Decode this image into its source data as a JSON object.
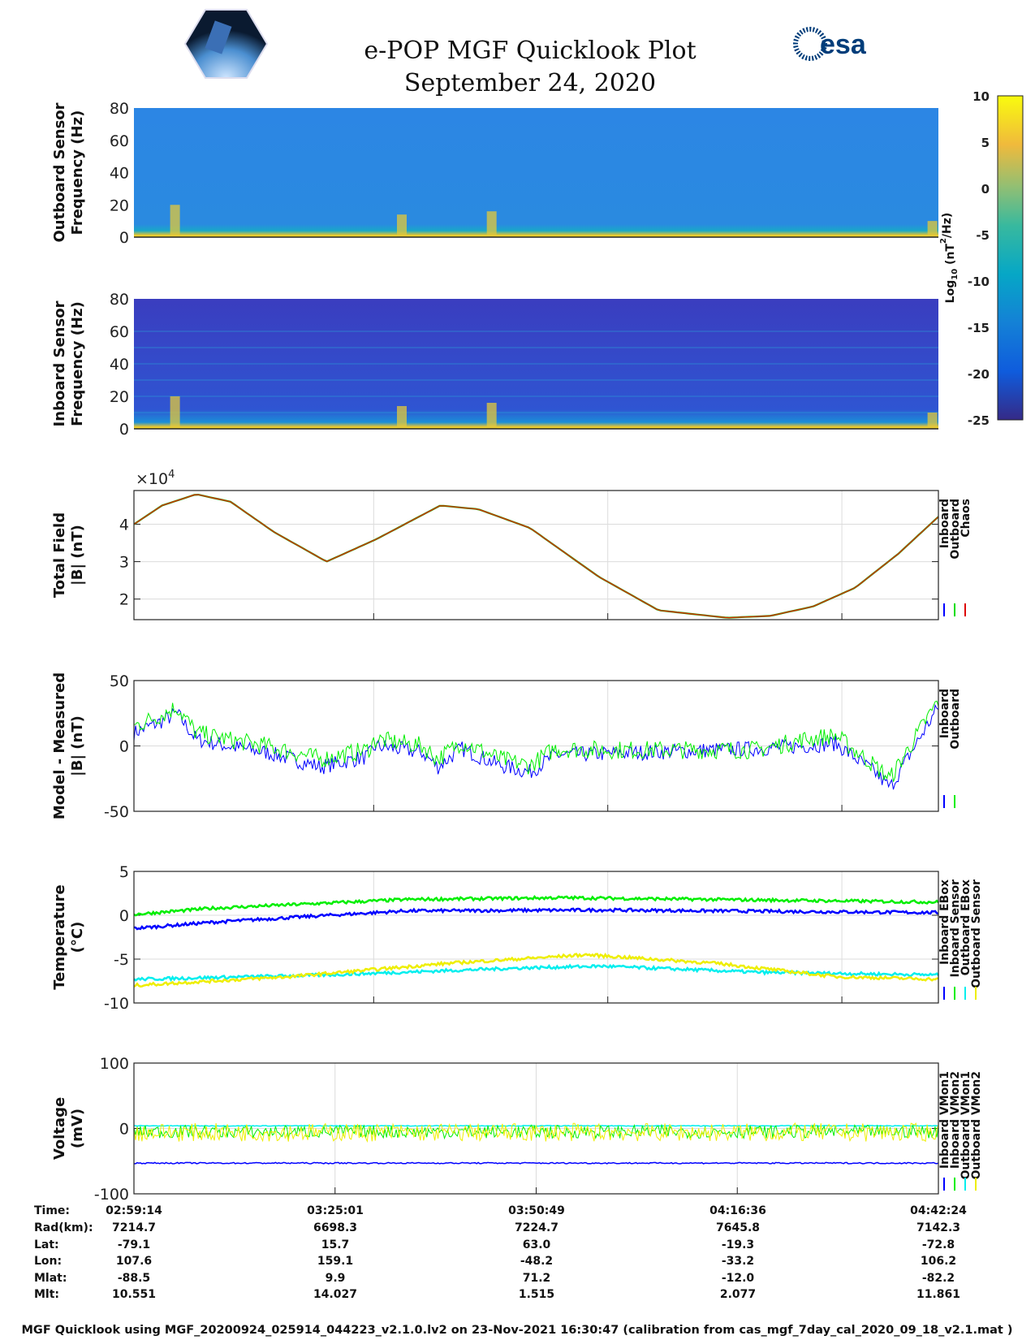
{
  "header": {
    "title": "e-POP MGF Quicklook Plot",
    "date": "September 24, 2020",
    "logo_left": "CASSIOPE",
    "logo_right": "esa"
  },
  "chart_data": [
    {
      "type": "heatmap",
      "name": "outboard-spectrogram",
      "ylabel": [
        "Outboard Sensor",
        "Frequency (Hz)"
      ],
      "yticks": [
        "0",
        "20",
        "40",
        "60",
        "80"
      ],
      "ylim": [
        0,
        80
      ]
    },
    {
      "type": "heatmap",
      "name": "inboard-spectrogram",
      "ylabel": [
        "Inboard Sensor",
        "Frequency (Hz)"
      ],
      "yticks": [
        "0",
        "20",
        "40",
        "60",
        "80"
      ],
      "ylim": [
        0,
        80
      ]
    },
    {
      "type": "colorbar",
      "label": "Log10 (nT^2/Hz)",
      "label_main": "Log",
      "label_sub": "10",
      "label_rest": " (nT",
      "label_sup": "2",
      "label_end": "/Hz)",
      "ticks": [
        "10",
        "5",
        "0",
        "-5",
        "-10",
        "-15",
        "-20",
        "-25"
      ],
      "range": [
        -25,
        10
      ]
    },
    {
      "type": "line",
      "name": "total-field",
      "ylabel": [
        "Total Field",
        "|B| (nT)"
      ],
      "exponent": "×10",
      "exponent_sup": "4",
      "yticks": [
        "2",
        "3",
        "4"
      ],
      "ytick_values": [
        2,
        3,
        4
      ],
      "ylim": [
        1.45,
        4.9
      ],
      "xlim": [
        0,
        103.2
      ],
      "legend": [
        "Inboard",
        "Outboard",
        "Chaos"
      ],
      "colors": [
        "#0000ff",
        "#00dd00",
        "#dd0000"
      ],
      "series": [
        {
          "name": "Chaos",
          "x": [
            0,
            3.6,
            8,
            12.4,
            17.9,
            24.7,
            31.1,
            39.3,
            44.2,
            50.8,
            59.6,
            67.3,
            76.1,
            81.6,
            87.1,
            92.5,
            98,
            103.2
          ],
          "y": [
            4.0,
            4.5,
            4.8,
            4.6,
            3.8,
            3.0,
            3.6,
            4.5,
            4.4,
            3.9,
            2.6,
            1.7,
            1.5,
            1.55,
            1.8,
            2.3,
            3.2,
            4.2
          ]
        }
      ]
    },
    {
      "type": "line",
      "name": "model-minus-measured",
      "ylabel": [
        "Model - Measured",
        "|B| (nT)"
      ],
      "yticks": [
        "-50",
        "0",
        "50"
      ],
      "ytick_values": [
        -50,
        0,
        50
      ],
      "ylim": [
        -50,
        50
      ],
      "xlim": [
        0,
        103.2
      ],
      "legend": [
        "Inboard",
        "Outboard"
      ],
      "colors": [
        "#0000ff",
        "#00ee00"
      ],
      "series": [
        {
          "name": "Inboard",
          "x": [
            0,
            4,
            5.5,
            8,
            12,
            17,
            24,
            30,
            31,
            37,
            39,
            42,
            47,
            50.8,
            54,
            60,
            70,
            80,
            86,
            90,
            95,
            97,
            103.2
          ],
          "y": [
            10,
            20,
            25,
            5,
            0,
            -5,
            -16,
            -8,
            0,
            -5,
            -16,
            -2,
            -15,
            -20,
            -7,
            -6,
            -4,
            -2,
            0,
            2,
            -20,
            -32,
            30
          ]
        },
        {
          "name": "Outboard",
          "x": [
            0,
            4,
            5.5,
            8,
            12,
            17,
            24,
            30,
            31,
            37,
            39,
            42,
            47,
            50.8,
            54,
            60,
            70,
            80,
            86,
            90,
            95,
            97,
            103.2
          ],
          "y": [
            15,
            25,
            30,
            10,
            5,
            0,
            -10,
            -3,
            5,
            0,
            -10,
            3,
            -10,
            -15,
            -2,
            -3,
            -3,
            -3,
            5,
            8,
            -15,
            -25,
            35
          ]
        }
      ]
    },
    {
      "type": "line",
      "name": "temperature",
      "ylabel": [
        "Temperature",
        "(°C)"
      ],
      "yticks": [
        "-10",
        "-5",
        "0",
        "5"
      ],
      "ytick_values": [
        -10,
        -5,
        0,
        5
      ],
      "ylim": [
        -10,
        5
      ],
      "xlim": [
        0,
        103.2
      ],
      "legend": [
        "Inboard EBox",
        "Inboard Sensor",
        "Outboard EBox",
        "Outboard Sensor"
      ],
      "colors": [
        "#0000ff",
        "#00ee00",
        "#00eeee",
        "#eeee00"
      ],
      "series": [
        {
          "name": "Inboard EBox",
          "x": [
            0,
            10,
            25,
            35,
            60,
            103.2
          ],
          "y": [
            -1.5,
            -0.8,
            0,
            0.5,
            0.6,
            0.3
          ]
        },
        {
          "name": "Inboard Sensor",
          "x": [
            0,
            10,
            25,
            35,
            55,
            103.2
          ],
          "y": [
            0.1,
            0.8,
            1.4,
            1.8,
            2.0,
            1.5
          ]
        },
        {
          "name": "Outboard EBox",
          "x": [
            0,
            25,
            50,
            60,
            80,
            103.2
          ],
          "y": [
            -7.3,
            -6.8,
            -6.0,
            -5.8,
            -6.5,
            -6.8
          ]
        },
        {
          "name": "Outboard Sensor",
          "x": [
            0,
            20,
            40,
            58,
            75,
            90,
            103.2
          ],
          "y": [
            -8.0,
            -7.0,
            -5.5,
            -4.5,
            -5.5,
            -7.0,
            -7.3
          ]
        }
      ]
    },
    {
      "type": "line",
      "name": "voltage",
      "ylabel": [
        "Voltage",
        "(mV)"
      ],
      "yticks": [
        "-100",
        "0",
        "100"
      ],
      "ytick_values": [
        -100,
        0,
        100
      ],
      "ylim": [
        -100,
        100
      ],
      "xlim": [
        0,
        103.2
      ],
      "legend": [
        "Inboard VMon1",
        "Inboard VMon2",
        "Outboard VMon1",
        "Outboard VMon2"
      ],
      "colors": [
        "#0000ff",
        "#00ee00",
        "#00eeee",
        "#eeee00"
      ],
      "series": [
        {
          "name": "Inboard VMon1",
          "x": [
            0,
            103.2
          ],
          "y": [
            -53,
            -53
          ]
        },
        {
          "name": "Inboard VMon2",
          "x": [
            0,
            103.2
          ],
          "y": [
            -5,
            -5
          ]
        },
        {
          "name": "Outboard VMon1",
          "x": [
            0,
            103.2
          ],
          "y": [
            4,
            4
          ]
        },
        {
          "name": "Outboard VMon2",
          "x": [
            0,
            103.2
          ],
          "y": [
            -6,
            -6
          ]
        }
      ]
    }
  ],
  "orbit_table": {
    "labels": [
      "Time:",
      "Rad(km):",
      "Lat:",
      "Lon:",
      "Mlat:",
      "Mlt:"
    ],
    "columns": [
      [
        "02:59:14",
        "7214.7",
        "-79.1",
        "107.6",
        "-88.5",
        "10.551"
      ],
      [
        "03:25:01",
        "6698.3",
        "15.7",
        "159.1",
        "9.9",
        "14.027"
      ],
      [
        "03:50:49",
        "7224.7",
        "63.0",
        "-48.2",
        "71.2",
        "1.515"
      ],
      [
        "04:16:36",
        "7645.8",
        "-19.3",
        "-33.2",
        "-12.0",
        "2.077"
      ],
      [
        "04:42:24",
        "7142.3",
        "-72.8",
        "106.2",
        "-82.2",
        "11.861"
      ]
    ]
  },
  "footer": "MGF Quicklook using MGF_20200924_025914_044223_v2.1.0.lv2 on 23-Nov-2021 16:30:47 (calibration from cas_mgf_7day_cal_2020_09_18_v2.1.mat )"
}
